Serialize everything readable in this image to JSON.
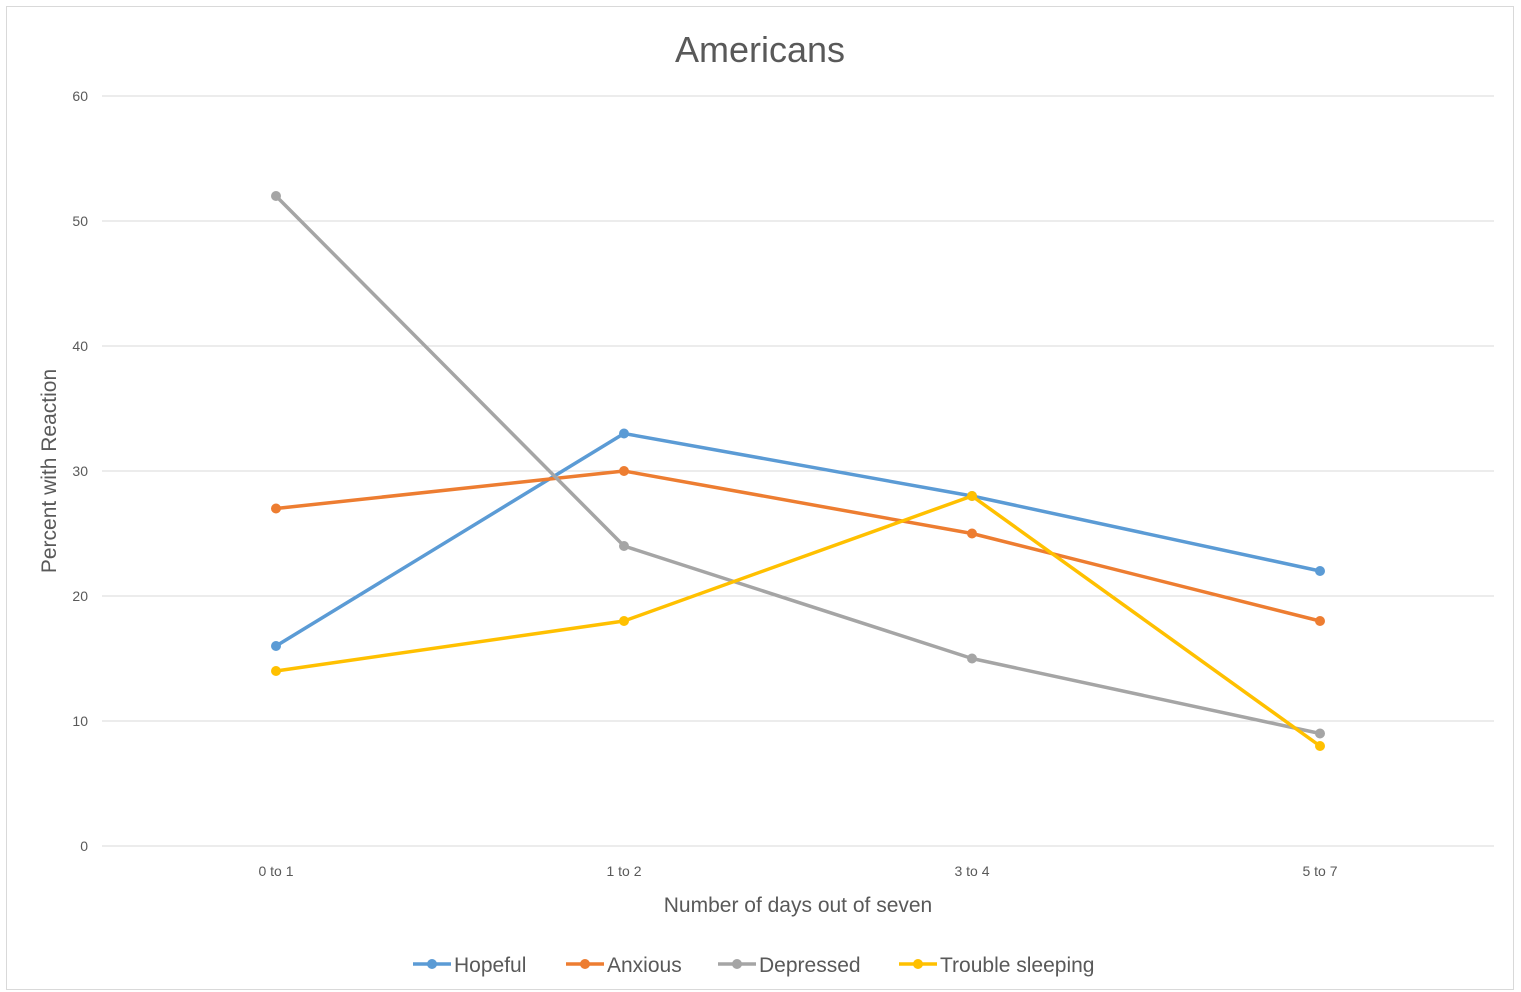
{
  "chart_data": {
    "type": "line",
    "title": "Americans",
    "xlabel": "Number of days out of seven",
    "ylabel": "Percent with Reaction",
    "categories": [
      "0 to 1",
      "1 to 2",
      "3 to 4",
      "5 to 7"
    ],
    "ylim": [
      0,
      60
    ],
    "yticks": [
      0,
      10,
      20,
      30,
      40,
      50,
      60
    ],
    "grid": true,
    "legend_position": "bottom",
    "series": [
      {
        "name": "Hopeful",
        "color": "#5B9BD5",
        "values": [
          16,
          33,
          28,
          22
        ]
      },
      {
        "name": "Anxious",
        "color": "#ED7D31",
        "values": [
          27,
          30,
          25,
          18
        ]
      },
      {
        "name": "Depressed",
        "color": "#A5A5A5",
        "values": [
          52,
          24,
          15,
          9
        ]
      },
      {
        "name": "Trouble sleeping",
        "color": "#FFC000",
        "values": [
          14,
          18,
          28,
          8
        ]
      }
    ]
  }
}
